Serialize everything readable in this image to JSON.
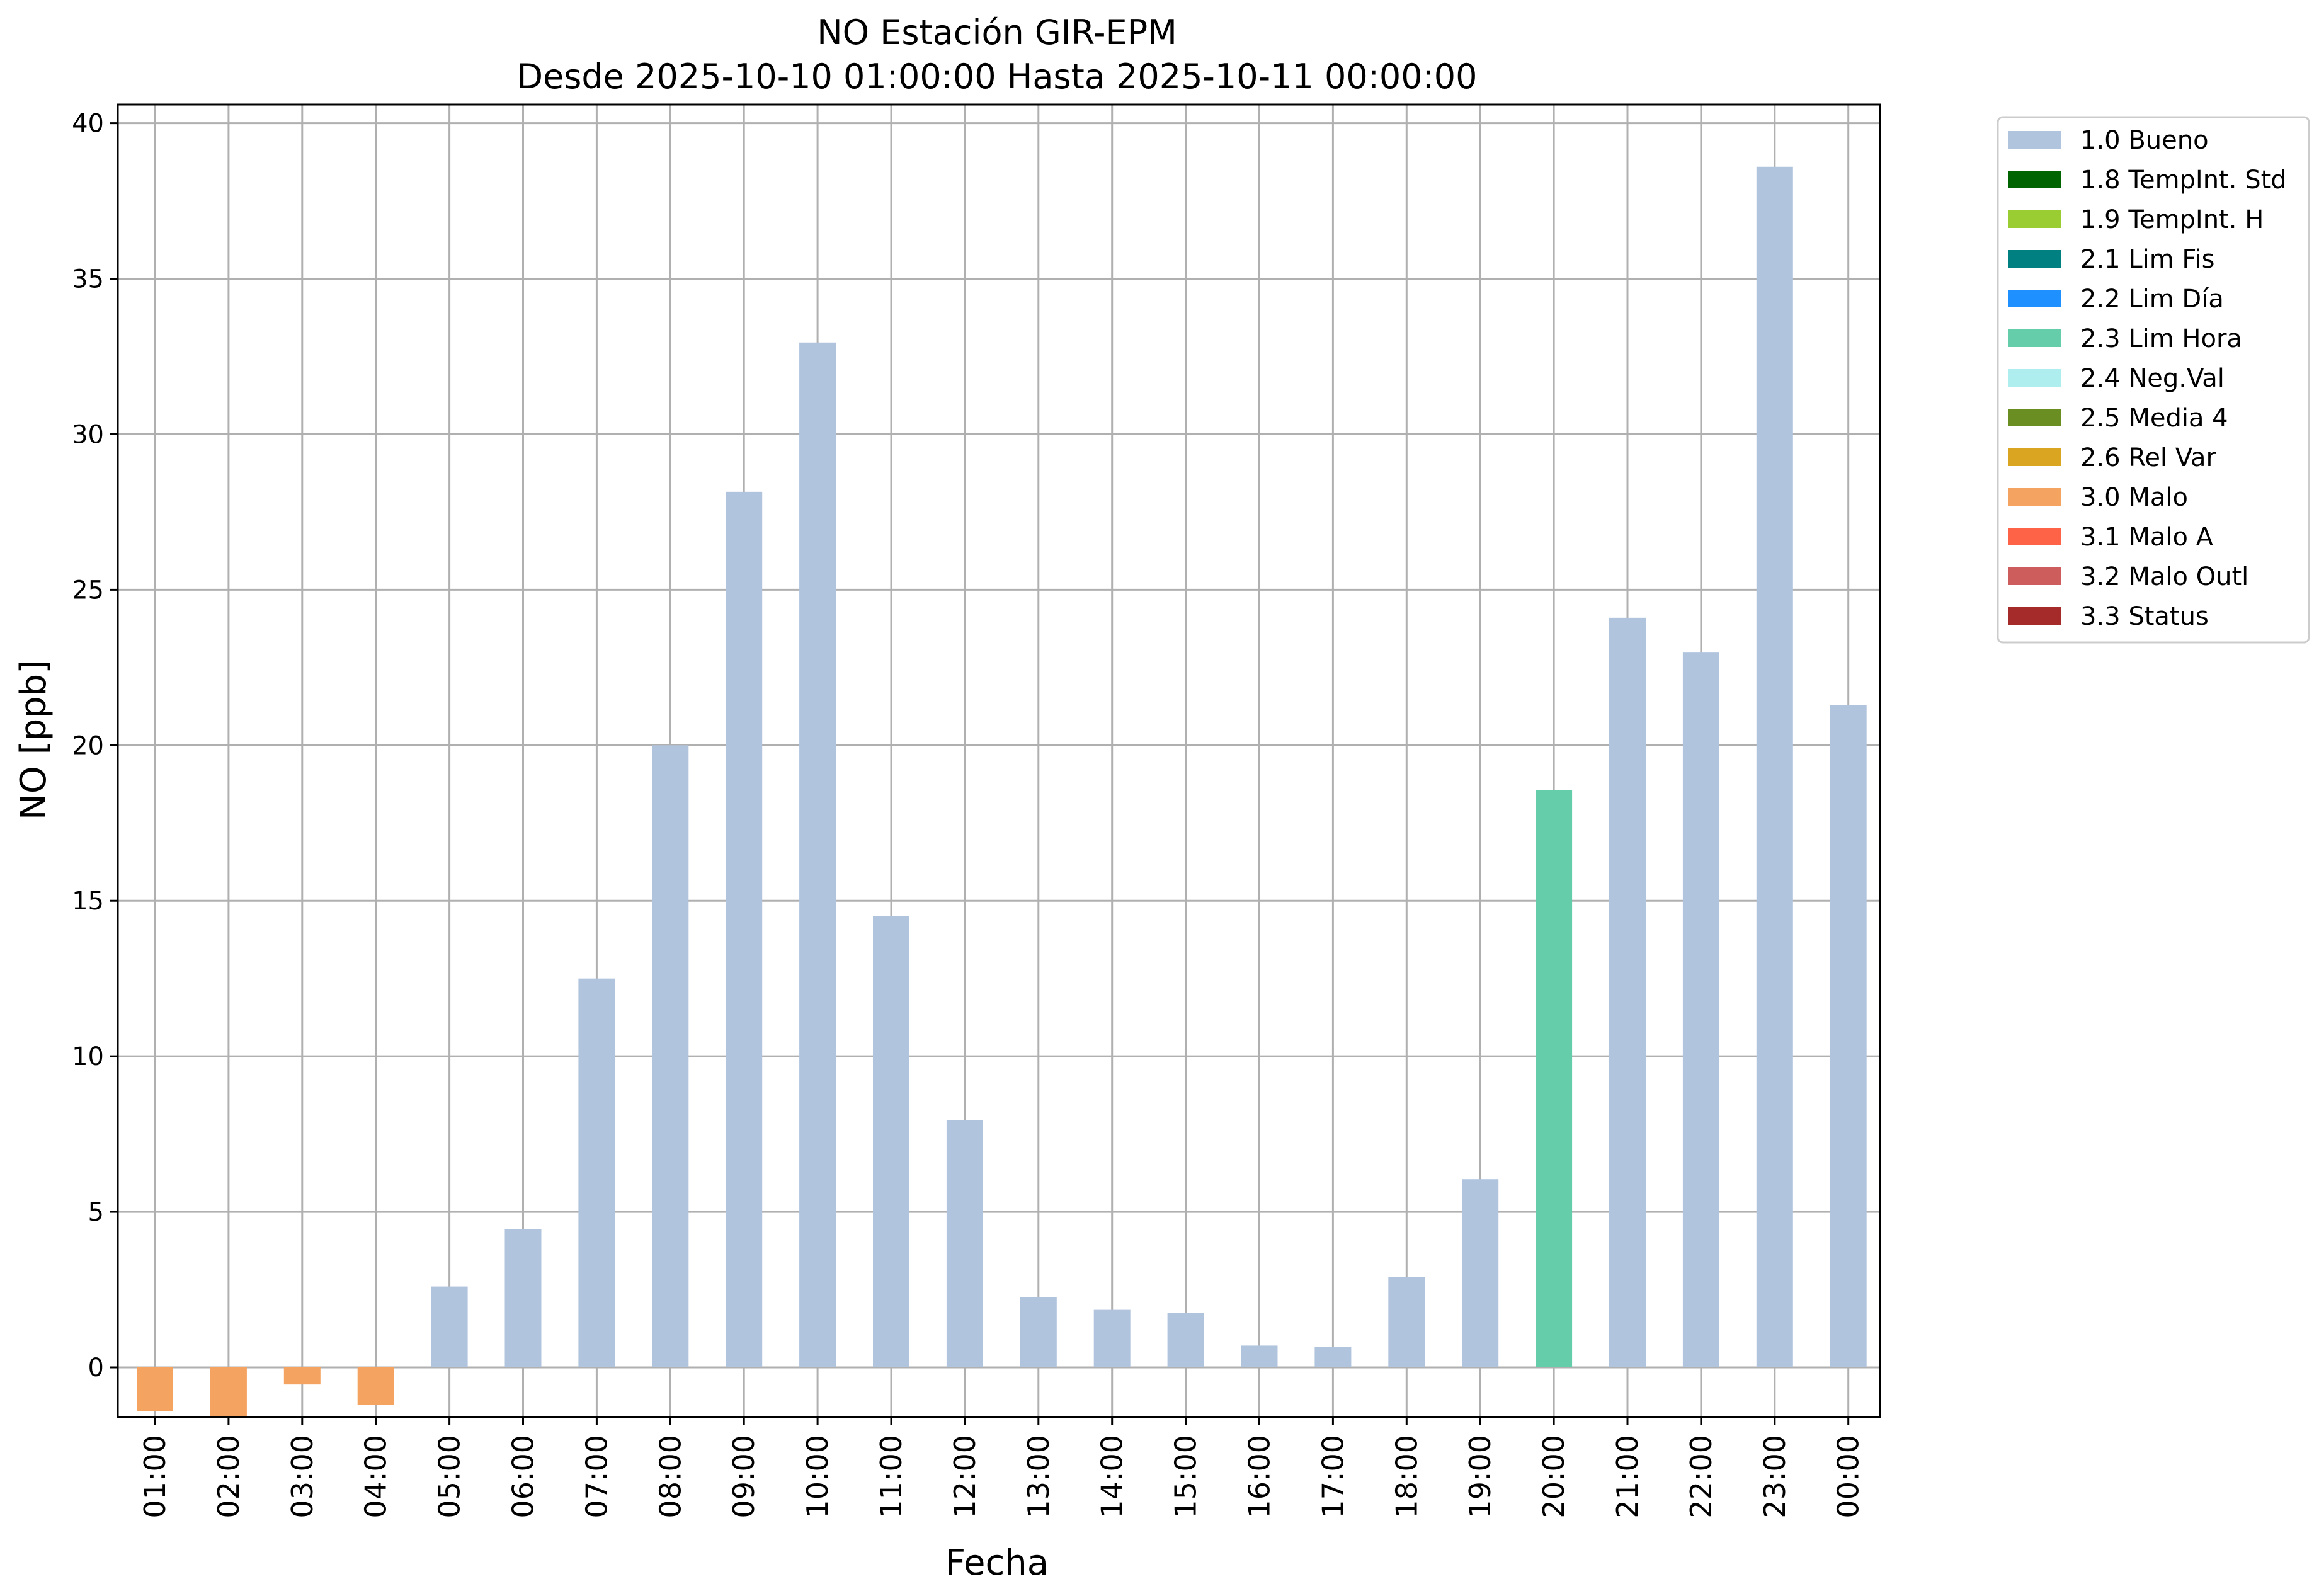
{
  "chart_data": {
    "type": "bar",
    "title": "NO Estación GIR-EPM",
    "subtitle": "Desde 2025-10-10 01:00:00 Hasta 2025-10-11 00:00:00",
    "xlabel": "Fecha",
    "ylabel": "NO [ppb]",
    "ylim": [
      -1.6,
      40.6
    ],
    "yticks": [
      "0",
      "5",
      "10",
      "15",
      "20",
      "25",
      "30",
      "35",
      "40"
    ],
    "grid": true,
    "legend_position": "outside-top-right",
    "categories": [
      "01:00",
      "02:00",
      "03:00",
      "04:00",
      "05:00",
      "06:00",
      "07:00",
      "08:00",
      "09:00",
      "10:00",
      "11:00",
      "12:00",
      "13:00",
      "14:00",
      "15:00",
      "16:00",
      "17:00",
      "18:00",
      "19:00",
      "20:00",
      "21:00",
      "22:00",
      "23:00",
      "00:00"
    ],
    "values": [
      -1.4,
      -1.6,
      -0.55,
      -1.2,
      2.6,
      4.45,
      12.5,
      20.0,
      28.15,
      32.95,
      14.5,
      7.95,
      2.25,
      1.85,
      1.75,
      0.7,
      0.65,
      2.9,
      6.05,
      18.55,
      24.1,
      23.0,
      38.6,
      21.3
    ],
    "flags": [
      "3.0 Malo",
      "3.0 Malo",
      "3.0 Malo",
      "3.0 Malo",
      "1.0 Bueno",
      "1.0 Bueno",
      "1.0 Bueno",
      "1.0 Bueno",
      "1.0 Bueno",
      "1.0 Bueno",
      "1.0 Bueno",
      "1.0 Bueno",
      "1.0 Bueno",
      "1.0 Bueno",
      "1.0 Bueno",
      "1.0 Bueno",
      "1.0 Bueno",
      "1.0 Bueno",
      "1.0 Bueno",
      "2.3 Lim Hora",
      "1.0 Bueno",
      "1.0 Bueno",
      "1.0 Bueno",
      "1.0 Bueno"
    ],
    "legend": [
      {
        "label": "1.0 Bueno",
        "color": "#b0c4de"
      },
      {
        "label": "1.8 TempInt. Std",
        "color": "#006400"
      },
      {
        "label": "1.9 TempInt. H",
        "color": "#9acd32"
      },
      {
        "label": "2.1 Lim Fis",
        "color": "#008080"
      },
      {
        "label": "2.2 Lim Día",
        "color": "#1e90ff"
      },
      {
        "label": "2.3 Lim Hora",
        "color": "#66cdaa"
      },
      {
        "label": "2.4 Neg.Val",
        "color": "#afeeee"
      },
      {
        "label": "2.5 Media 4",
        "color": "#6b8e23"
      },
      {
        "label": "2.6 Rel Var",
        "color": "#daa520"
      },
      {
        "label": "3.0 Malo",
        "color": "#f4a460"
      },
      {
        "label": "3.1 Malo A",
        "color": "#ff6347"
      },
      {
        "label": "3.2 Malo Outl",
        "color": "#cd5c5c"
      },
      {
        "label": "3.3 Status",
        "color": "#a52a2a"
      }
    ]
  }
}
